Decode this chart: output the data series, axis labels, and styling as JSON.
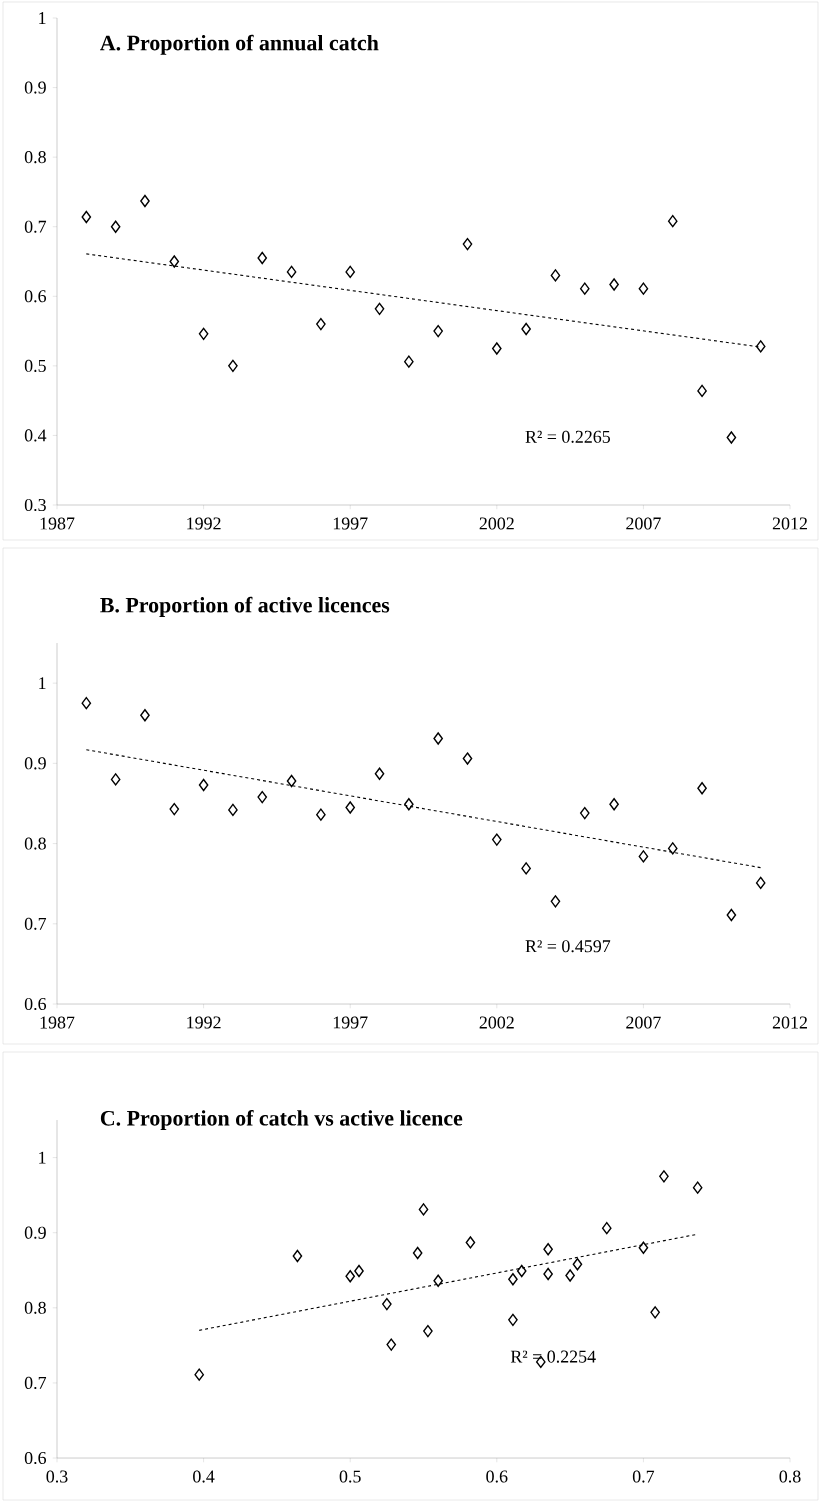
{
  "chart_data": [
    {
      "type": "scatter",
      "title": "A. Proportion of annual catch",
      "x": [
        1988,
        1989,
        1990,
        1991,
        1992,
        1993,
        1994,
        1995,
        1996,
        1997,
        1998,
        1999,
        2000,
        2001,
        2002,
        2003,
        2004,
        2005,
        2006,
        2007,
        2008,
        2009,
        2010,
        2011
      ],
      "series": [
        {
          "marker": "diamond",
          "color": "#000000",
          "values": [
            0.714,
            0.7,
            0.737,
            0.65,
            0.546,
            0.5,
            0.655,
            0.635,
            0.56,
            0.635,
            0.582,
            0.506,
            0.55,
            0.675,
            0.525,
            0.553,
            0.63,
            0.611,
            0.617,
            0.611,
            0.708,
            0.464,
            0.397,
            0.528
          ]
        },
        {
          "type": "line",
          "color": "#000000",
          "line_style": "dashed",
          "x": [
            1988,
            2011
          ],
          "values": [
            0.661,
            0.527
          ]
        }
      ],
      "xlim": [
        1987,
        2012
      ],
      "xticks": [
        1987,
        1992,
        1997,
        2002,
        2007,
        2012
      ],
      "ylim": [
        0.3,
        1
      ],
      "yticks": [
        0.3,
        0.4,
        0.5,
        0.6,
        0.7,
        0.8,
        0.9,
        1
      ],
      "annotations": [
        "R² = 0.2265"
      ]
    },
    {
      "type": "scatter",
      "title": "B. Proportion of active licences",
      "x": [
        1988,
        1989,
        1990,
        1991,
        1992,
        1993,
        1994,
        1995,
        1996,
        1997,
        1998,
        1999,
        2000,
        2001,
        2002,
        2003,
        2004,
        2005,
        2006,
        2007,
        2008,
        2009,
        2010,
        2011
      ],
      "series": [
        {
          "marker": "diamond",
          "color": "#000000",
          "values": [
            0.975,
            0.88,
            0.96,
            0.843,
            0.873,
            0.842,
            0.858,
            0.878,
            0.836,
            0.845,
            0.887,
            0.849,
            0.931,
            0.906,
            0.805,
            0.769,
            0.728,
            0.838,
            0.849,
            0.784,
            0.794,
            0.869,
            0.711,
            0.751
          ]
        },
        {
          "type": "line",
          "color": "#000000",
          "line_style": "dashed",
          "x": [
            1988,
            2011
          ],
          "values": [
            0.917,
            0.77
          ]
        }
      ],
      "xlim": [
        1987,
        2012
      ],
      "xticks": [
        1987,
        1992,
        1997,
        2002,
        2007,
        2012
      ],
      "ylim": [
        0.6,
        1.05
      ],
      "yticks": [
        0.6,
        0.7,
        0.8,
        0.9,
        1
      ],
      "annotations": [
        "R² = 0.4597"
      ]
    },
    {
      "type": "scatter",
      "title": "C. Proportion of catch vs active licence",
      "x": [
        0.714,
        0.7,
        0.737,
        0.65,
        0.546,
        0.5,
        0.655,
        0.635,
        0.56,
        0.635,
        0.582,
        0.506,
        0.55,
        0.675,
        0.525,
        0.553,
        0.63,
        0.611,
        0.617,
        0.611,
        0.708,
        0.464,
        0.397,
        0.528
      ],
      "series": [
        {
          "marker": "diamond",
          "color": "#000000",
          "values": [
            0.975,
            0.88,
            0.96,
            0.843,
            0.873,
            0.842,
            0.858,
            0.878,
            0.836,
            0.845,
            0.887,
            0.849,
            0.931,
            0.906,
            0.805,
            0.769,
            0.728,
            0.838,
            0.849,
            0.784,
            0.794,
            0.869,
            0.711,
            0.751
          ]
        },
        {
          "type": "line",
          "color": "#000000",
          "line_style": "dashed",
          "x": [
            0.397,
            0.737
          ],
          "values": [
            0.77,
            0.898
          ]
        }
      ],
      "xlim": [
        0.3,
        0.8
      ],
      "xticks": [
        0.3,
        0.4,
        0.5,
        0.6,
        0.7,
        0.8
      ],
      "ylim": [
        0.6,
        1.05
      ],
      "yticks": [
        0.6,
        0.7,
        0.8,
        0.9,
        1
      ],
      "annotations": [
        "R² = 0.2254"
      ]
    }
  ]
}
